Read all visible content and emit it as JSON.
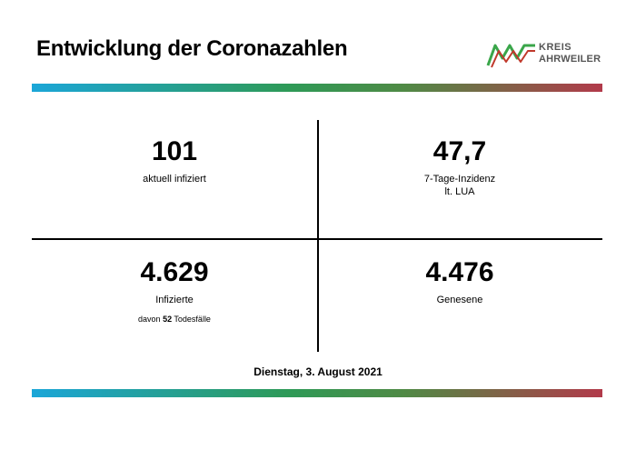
{
  "title": "Entwicklung der Coronazahlen",
  "logo": {
    "line1": "KREIS",
    "line2": "AHRWEILER"
  },
  "stats": {
    "infected_now": {
      "value": "101",
      "label": "aktuell infiziert"
    },
    "incidence": {
      "value": "47,7",
      "label_line1": "7-Tage-Inzidenz",
      "label_line2": "lt. LUA"
    },
    "total_infected": {
      "value": "4.629",
      "label": "Infizierte",
      "note_prefix": "davon ",
      "note_count": "52",
      "note_suffix": " Todesfälle"
    },
    "recovered": {
      "value": "4.476",
      "label": "Genesene"
    }
  },
  "date": "Dienstag, 3. August 2021",
  "colors": {
    "gradient": [
      "#1ba6d8",
      "#2e9a57",
      "#b23a4a"
    ],
    "logo_green": "#3aa64a",
    "logo_red": "#c0392b"
  }
}
